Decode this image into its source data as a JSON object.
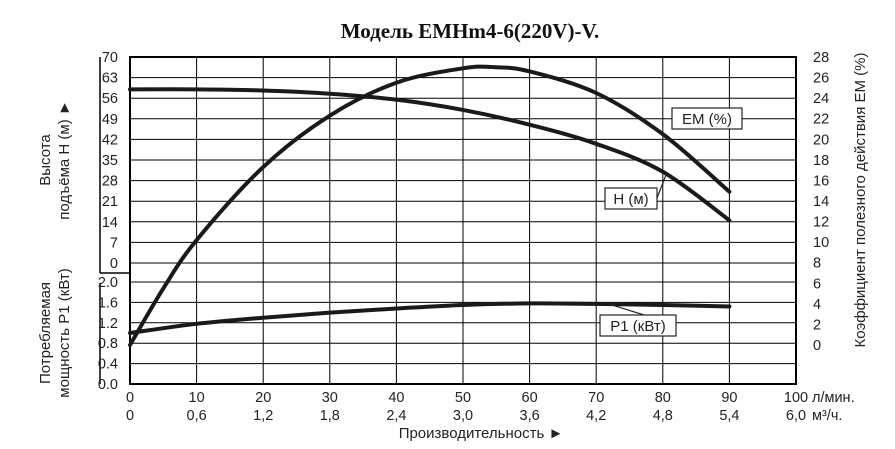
{
  "chart_data": {
    "type": "line",
    "title": "Модель EMHm4-6(220V)-V.",
    "x_primary": {
      "ticks": [
        0,
        10,
        20,
        30,
        40,
        50,
        60,
        70,
        80,
        90,
        100
      ],
      "unit": "л/мин.",
      "range": [
        0,
        100
      ]
    },
    "x_secondary": {
      "ticks": [
        "0",
        "0,6",
        "1,2",
        "1,8",
        "2,4",
        "3,0",
        "3,6",
        "4,2",
        "4,8",
        "5,4",
        "6,0"
      ],
      "unit": "м³/ч."
    },
    "xlabel": "Производительность ►",
    "head_axis": {
      "label_line1": "Высота",
      "label_line2": "подъёма Н (м) ►",
      "ticks": [
        0,
        7,
        14,
        21,
        28,
        35,
        42,
        49,
        56,
        63,
        70
      ],
      "range": [
        0,
        70
      ]
    },
    "power_axis": {
      "label_line1": "Потребляемая",
      "label_line2": "мощность Р1 (кВт)",
      "ticks": [
        "0.0",
        "0.4",
        "0.8",
        "1.2",
        "1.6",
        "2.0"
      ],
      "range": [
        0,
        2.0
      ]
    },
    "efficiency_axis": {
      "label": "Коэффициент полезного действия ЕМ (%)",
      "ticks": [
        0,
        2,
        4,
        6,
        8,
        10,
        12,
        14,
        16,
        18,
        20,
        22,
        24,
        26,
        28
      ],
      "range": [
        0,
        28
      ]
    },
    "series": [
      {
        "name": "Н (м)",
        "axis": "head",
        "x": [
          0,
          10,
          20,
          30,
          40,
          50,
          60,
          70,
          80,
          90
        ],
        "values": [
          59,
          59,
          58.6,
          57.5,
          55.5,
          52,
          47,
          40.5,
          31,
          14.5
        ]
      },
      {
        "name": "ЕМ (%)",
        "axis": "efficiency",
        "x": [
          0,
          5,
          10,
          20,
          30,
          40,
          50,
          55,
          60,
          70,
          80,
          90
        ],
        "values": [
          0,
          5.5,
          10.2,
          17.3,
          22.3,
          25.5,
          26.9,
          27,
          26.6,
          24.5,
          20.5,
          14.9
        ]
      },
      {
        "name": "Р1 (кВт)",
        "axis": "power",
        "x": [
          0,
          10,
          20,
          30,
          40,
          50,
          60,
          70,
          80,
          90
        ],
        "values": [
          1.0,
          1.18,
          1.3,
          1.4,
          1.48,
          1.55,
          1.58,
          1.57,
          1.55,
          1.52
        ]
      }
    ],
    "grid": true
  }
}
